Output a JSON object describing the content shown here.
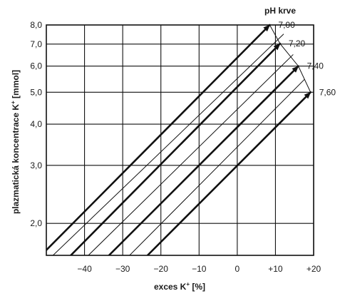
{
  "chart_data": {
    "type": "line",
    "xlabel": "exces K",
    "xlabel_sup": "+",
    "xlabel_unit": " [%]",
    "ylabel": "plazmatická koncentrace K",
    "ylabel_sup": "+",
    "ylabel_unit": " [mmol]",
    "y_scale": "log",
    "xlim": [
      -50,
      20
    ],
    "ylim": [
      1.6,
      8.0
    ],
    "x_ticks": [
      -40,
      -30,
      -20,
      -10,
      0,
      10,
      20
    ],
    "x_tick_labels": [
      "−40",
      "−30",
      "−20",
      "−10",
      "0",
      "+10",
      "+20"
    ],
    "y_ticks": [
      2.0,
      3.0,
      4.0,
      5.0,
      6.0,
      7.0,
      8.0
    ],
    "y_tick_labels": [
      "2,0",
      "3,0",
      "4,0",
      "5,0",
      "6,0",
      "7,0",
      "8,0"
    ],
    "grid": true,
    "series_title": "pH krve",
    "series": [
      {
        "name": "7,00",
        "bold": true,
        "arrow": true,
        "x": [
          -50,
          8.5
        ],
        "y": [
          1.66,
          8.0
        ]
      },
      {
        "name": "",
        "bold": false,
        "arrow": false,
        "x": [
          -49,
          12.1
        ],
        "y": [
          1.57,
          7.5
        ]
      },
      {
        "name": "7,20",
        "bold": true,
        "arrow": true,
        "x": [
          -43.6,
          11.2
        ],
        "y": [
          1.6,
          7.02
        ]
      },
      {
        "name": "",
        "bold": false,
        "arrow": false,
        "x": [
          -39,
          14.6
        ],
        "y": [
          1.6,
          6.5
        ]
      },
      {
        "name": "7,40",
        "bold": true,
        "arrow": true,
        "x": [
          -33.6,
          16
        ],
        "y": [
          1.6,
          6.0
        ]
      },
      {
        "name": "",
        "bold": false,
        "arrow": false,
        "x": [
          -28.2,
          17.6
        ],
        "y": [
          1.6,
          5.47
        ]
      },
      {
        "name": "7,60",
        "bold": true,
        "arrow": true,
        "x": [
          -23.5,
          19.2
        ],
        "y": [
          1.6,
          5.0
        ]
      }
    ]
  }
}
